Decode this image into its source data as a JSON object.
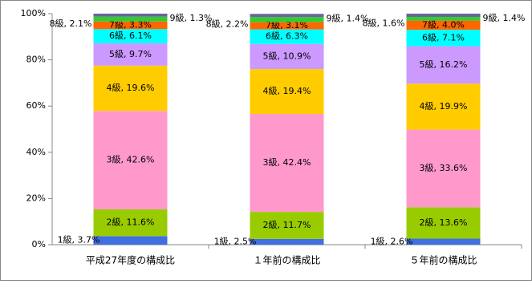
{
  "chart_data": {
    "type": "stacked-bar",
    "categories": [
      "平成27年度の構成比",
      "１年前の構成比",
      "５年前の構成比"
    ],
    "ylim": [
      0,
      100
    ],
    "yticks": [
      {
        "value": 0,
        "label": "0%"
      },
      {
        "value": 20,
        "label": "20%"
      },
      {
        "value": 40,
        "label": "40%"
      },
      {
        "value": 60,
        "label": "60%"
      },
      {
        "value": 80,
        "label": "80%"
      },
      {
        "value": 100,
        "label": "100%"
      }
    ],
    "series": [
      {
        "name": "1級",
        "color": "#3f6fe0",
        "values": [
          3.7,
          2.5,
          2.6
        ],
        "value_labels": [
          "1級, 3.7%",
          "1級, 2.5%",
          "1級, 2.6%"
        ]
      },
      {
        "name": "2級",
        "color": "#99cc00",
        "values": [
          11.6,
          11.7,
          13.6
        ],
        "value_labels": [
          "2級, 11.6%",
          "2級, 11.7%",
          "2級, 13.6%"
        ]
      },
      {
        "name": "3級",
        "color": "#ff99cc",
        "values": [
          42.6,
          42.4,
          33.6
        ],
        "value_labels": [
          "3級, 42.6%",
          "3級, 42.4%",
          "3級, 33.6%"
        ]
      },
      {
        "name": "4級",
        "color": "#ffcc00",
        "values": [
          19.6,
          19.4,
          19.9
        ],
        "value_labels": [
          "4級, 19.6%",
          "4級, 19.4%",
          "4級, 19.9%"
        ]
      },
      {
        "name": "5級",
        "color": "#cc99ff",
        "values": [
          9.7,
          10.9,
          16.2
        ],
        "value_labels": [
          "5級, 9.7%",
          "5級, 10.9%",
          "5級, 16.2%"
        ]
      },
      {
        "name": "6級",
        "color": "#00ffff",
        "values": [
          6.1,
          6.3,
          7.1
        ],
        "value_labels": [
          "6級, 6.1%",
          "6級, 6.3%",
          "6級, 7.1%"
        ]
      },
      {
        "name": "7級",
        "color": "#ff6600",
        "values": [
          3.3,
          3.1,
          4.0
        ],
        "value_labels": [
          "7級, 3.3%",
          "7級, 3.1%",
          "7級, 4.0%"
        ]
      },
      {
        "name": "8級",
        "color": "#33cc33",
        "values": [
          2.1,
          2.2,
          1.6
        ],
        "value_labels": [
          "8級, 2.1%",
          "8級, 2.2%",
          "8級, 1.6%"
        ]
      },
      {
        "name": "9級",
        "color": "#666699",
        "values": [
          1.3,
          1.4,
          1.4
        ],
        "value_labels": [
          "9級, 1.3%",
          "9級, 1.4%",
          "9級, 1.4%"
        ]
      }
    ]
  }
}
